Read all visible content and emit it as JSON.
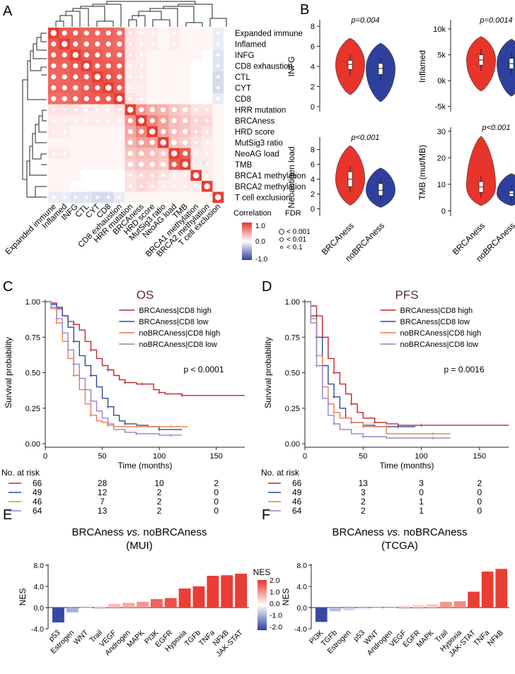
{
  "panel_labels": [
    "A",
    "B",
    "C",
    "D",
    "E",
    "F"
  ],
  "panel_a": {
    "row_labels": [
      "Expanded immune",
      "Inflamed",
      "INFG",
      "CD8 exhaustion",
      "CTL",
      "CYT",
      "CD8",
      "HRR mutation",
      "BRCAness",
      "HRD score",
      "MutSig3 ratio",
      "NeoAG load",
      "TMB",
      "BRCA1 methylation",
      "BRCA2 methylation",
      "T cell exclusion"
    ],
    "col_labels": [
      "Expanded immune",
      "Inflamed",
      "INFG",
      "CTL",
      "CYT",
      "CD8",
      "CD8 exhaustion",
      "HRR mutation",
      "BRCAness",
      "HRD score",
      "MutSig3 ratio",
      "NeoAG load",
      "TMB",
      "BRCA1 methylation",
      "BRCA2 methylation",
      "T cell exclusion"
    ],
    "legend": {
      "correlation_title": "Correlation",
      "fdr_title": "FDR",
      "ticks": [
        "1.0",
        "0.0",
        "-1.0"
      ],
      "fdr_levels": [
        "< 0.001",
        "< 0.01",
        "< 0.1"
      ],
      "colors": {
        "pos": "#e8342a",
        "mid": "#ffffff",
        "neg": "#2f3f9e"
      }
    }
  },
  "chart_data": [
    {
      "id": "heatmap",
      "type": "heatmap",
      "title": "",
      "note": "Approximate correlation values read from colour intensity (rows and columns in the same order as panel_a.row_labels).",
      "matrix": [
        [
          1,
          0.85,
          0.85,
          0.8,
          0.8,
          0.8,
          0.75,
          0.15,
          0.1,
          0.1,
          0.05,
          0.1,
          0.05,
          0.05,
          0.05,
          -0.1
        ],
        [
          0.85,
          1,
          0.85,
          0.8,
          0.8,
          0.8,
          0.75,
          0.15,
          0.1,
          0.1,
          0.05,
          0.1,
          0.05,
          0.05,
          0.05,
          -0.1
        ],
        [
          0.85,
          0.85,
          1,
          0.85,
          0.85,
          0.8,
          0.8,
          0.15,
          0.1,
          0.05,
          0.05,
          0.05,
          0.05,
          0.05,
          0,
          -0.15
        ],
        [
          0.8,
          0.8,
          0.85,
          1,
          0.85,
          0.85,
          0.85,
          0.1,
          0.1,
          0.05,
          0.05,
          0.05,
          0.05,
          0,
          0,
          -0.15
        ],
        [
          0.8,
          0.8,
          0.85,
          0.85,
          1,
          0.9,
          0.85,
          0.1,
          0.1,
          0.05,
          0.05,
          0.05,
          0.05,
          0,
          0,
          -0.2
        ],
        [
          0.8,
          0.8,
          0.8,
          0.85,
          0.9,
          1,
          0.85,
          0.1,
          0.1,
          0.05,
          0.05,
          0.05,
          0.05,
          0,
          0,
          -0.2
        ],
        [
          0.75,
          0.75,
          0.8,
          0.85,
          0.85,
          0.85,
          1,
          0.15,
          0.1,
          0.05,
          0.05,
          0.05,
          0.05,
          0,
          0,
          -0.1
        ],
        [
          0.15,
          0.15,
          0.15,
          0.1,
          0.1,
          0.1,
          0.15,
          1,
          0.55,
          0.45,
          0.4,
          0.3,
          0.25,
          0.15,
          0.15,
          0.05
        ],
        [
          0.1,
          0.1,
          0.1,
          0.1,
          0.1,
          0.1,
          0.1,
          0.55,
          1,
          0.65,
          0.5,
          0.35,
          0.3,
          0.2,
          0.2,
          0.05
        ],
        [
          0.1,
          0.1,
          0.05,
          0.05,
          0.05,
          0.05,
          0.05,
          0.45,
          0.65,
          1,
          0.5,
          0.35,
          0.3,
          0.2,
          0.15,
          0.05
        ],
        [
          0.05,
          0.05,
          0.05,
          0.05,
          0.05,
          0.05,
          0.05,
          0.4,
          0.5,
          0.5,
          1,
          0.3,
          0.25,
          0.15,
          0.1,
          0.05
        ],
        [
          0.1,
          0.1,
          0.05,
          0.05,
          0.05,
          0.05,
          0.05,
          0.3,
          0.35,
          0.35,
          0.3,
          1,
          0.85,
          0.1,
          0.1,
          0.05
        ],
        [
          0.05,
          0.05,
          0.05,
          0.05,
          0.05,
          0.05,
          0.05,
          0.25,
          0.3,
          0.3,
          0.25,
          0.85,
          1,
          0.1,
          0.1,
          0.05
        ],
        [
          0.05,
          0.05,
          0.05,
          0,
          0,
          0,
          0,
          0.15,
          0.2,
          0.2,
          0.15,
          0.1,
          0.1,
          1,
          0.1,
          0.05
        ],
        [
          0.05,
          0.05,
          0,
          0,
          0,
          0,
          0,
          0.15,
          0.2,
          0.15,
          0.1,
          0.1,
          0.1,
          0.1,
          1,
          0.05
        ],
        [
          -0.1,
          -0.1,
          -0.15,
          -0.15,
          -0.2,
          -0.2,
          -0.1,
          0.05,
          0.05,
          0.05,
          0.05,
          0.05,
          0.05,
          0.05,
          0.05,
          1
        ]
      ]
    },
    {
      "id": "violin-infg",
      "type": "violin",
      "ylabel": "INFG",
      "pvalue": "p=0.004",
      "ylim": [
        -0.5,
        8.5
      ],
      "yticks": [
        0,
        2,
        4,
        6,
        8
      ],
      "groups": [
        {
          "name": "BRCAness",
          "color": "#e8342a",
          "median": 4.2,
          "q1": 3.7,
          "q3": 4.6,
          "min": 1.2,
          "max": 6.8
        },
        {
          "name": "noBRCAness",
          "color": "#2f3f9e",
          "median": 3.8,
          "q1": 3.2,
          "q3": 4.3,
          "min": 0.5,
          "max": 6.3
        }
      ]
    },
    {
      "id": "violin-inflamed",
      "type": "violin",
      "ylabel": "Inflamed",
      "pvalue": "p=0.0014",
      "ylim": [
        -6000,
        11500
      ],
      "yticks": [
        -5000,
        0,
        5000,
        10000
      ],
      "ytick_labels": [
        "-5k",
        "0k",
        "5k",
        "10k"
      ],
      "groups": [
        {
          "name": "BRCAness",
          "color": "#e8342a",
          "median": 4000,
          "q1": 3000,
          "q3": 5000,
          "min": -2000,
          "max": 8500
        },
        {
          "name": "noBRCAness",
          "color": "#2f3f9e",
          "median": 3300,
          "q1": 2300,
          "q3": 4300,
          "min": -3000,
          "max": 8000
        }
      ]
    },
    {
      "id": "violin-neoag",
      "type": "violin",
      "ylabel": "Neoantigen load",
      "pvalue": "p<0.001",
      "ylim": [
        -1,
        9.5
      ],
      "yticks": [
        0,
        2,
        4,
        6,
        8
      ],
      "groups": [
        {
          "name": "BRCAness",
          "color": "#e8342a",
          "median": 4.0,
          "q1": 3.0,
          "q3": 5.0,
          "min": 0.5,
          "max": 8.5
        },
        {
          "name": "noBRCAness",
          "color": "#2f3f9e",
          "median": 2.5,
          "q1": 1.8,
          "q3": 3.4,
          "min": 0.2,
          "max": 5.5
        }
      ]
    },
    {
      "id": "violin-tmb",
      "type": "violin",
      "ylabel": "TMB (mut/MB)",
      "pvalue": "p<0.001",
      "ylim": [
        -2,
        31
      ],
      "yticks": [
        0,
        10,
        20,
        30
      ],
      "groups": [
        {
          "name": "BRCAness",
          "color": "#e8342a",
          "median": 9,
          "q1": 7,
          "q3": 11,
          "min": 2,
          "max": 28
        },
        {
          "name": "noBRCAness",
          "color": "#2f3f9e",
          "median": 6.5,
          "q1": 5.5,
          "q3": 7.5,
          "min": 2,
          "max": 14
        }
      ]
    },
    {
      "id": "km-os",
      "type": "line",
      "title": "OS",
      "xlabel": "Time (months)",
      "ylabel": "Survival probability",
      "xlim": [
        0,
        175
      ],
      "ylim": [
        0,
        1
      ],
      "xticks": [
        0,
        50,
        100,
        150
      ],
      "yticks": [
        "0.00",
        "0.25",
        "0.50",
        "0.75",
        "1.00"
      ],
      "pvalue": "p < 0.0001",
      "series": [
        {
          "name": "BRCAness|CD8 high",
          "color": "#c0262d",
          "x": [
            0,
            5,
            10,
            15,
            20,
            25,
            30,
            35,
            40,
            45,
            50,
            55,
            60,
            65,
            70,
            75,
            80,
            85,
            90,
            95,
            100,
            105,
            110,
            120,
            175
          ],
          "y": [
            1,
            0.99,
            0.95,
            0.9,
            0.86,
            0.84,
            0.8,
            0.72,
            0.66,
            0.6,
            0.55,
            0.52,
            0.48,
            0.45,
            0.43,
            0.43,
            0.42,
            0.42,
            0.42,
            0.38,
            0.36,
            0.35,
            0.35,
            0.34,
            0.34
          ]
        },
        {
          "name": "BRCAness|CD8 low",
          "color": "#2e4a9a",
          "x": [
            0,
            5,
            10,
            15,
            20,
            25,
            30,
            35,
            40,
            45,
            50,
            55,
            60,
            65,
            70,
            80,
            90,
            100,
            110,
            120
          ],
          "y": [
            1,
            0.98,
            0.96,
            0.9,
            0.82,
            0.72,
            0.62,
            0.55,
            0.48,
            0.4,
            0.32,
            0.26,
            0.2,
            0.16,
            0.14,
            0.13,
            0.12,
            0.1,
            0.1,
            0.1
          ]
        },
        {
          "name": "noBRCAness|CD8 high",
          "color": "#f07a46",
          "x": [
            0,
            5,
            10,
            15,
            20,
            25,
            30,
            35,
            40,
            45,
            50,
            55,
            60,
            70,
            80,
            90,
            100,
            110,
            125
          ],
          "y": [
            1,
            0.95,
            0.85,
            0.72,
            0.6,
            0.48,
            0.38,
            0.28,
            0.2,
            0.16,
            0.15,
            0.13,
            0.12,
            0.12,
            0.12,
            0.12,
            0.12,
            0.12,
            0.12
          ]
        },
        {
          "name": "noBRCAness|CD8 low",
          "color": "#9583c6",
          "x": [
            0,
            5,
            10,
            15,
            20,
            25,
            30,
            35,
            40,
            45,
            50,
            55,
            60,
            70,
            80,
            90,
            100,
            110,
            120
          ],
          "y": [
            1,
            0.96,
            0.88,
            0.78,
            0.66,
            0.56,
            0.46,
            0.38,
            0.3,
            0.23,
            0.18,
            0.14,
            0.1,
            0.08,
            0.07,
            0.07,
            0.06,
            0.06,
            0.06
          ]
        }
      ],
      "risk_table": {
        "title": "No. at risk",
        "times": [
          0,
          50,
          100,
          150
        ],
        "rows": [
          [
            "66",
            "28",
            "10",
            "2"
          ],
          [
            "49",
            "12",
            "2",
            "0"
          ],
          [
            "46",
            "7",
            "2",
            "0"
          ],
          [
            "64",
            "13",
            "2",
            "0"
          ]
        ]
      }
    },
    {
      "id": "km-pfs",
      "type": "line",
      "title": "PFS",
      "xlabel": "Time (months)",
      "ylabel": "Survival probability",
      "xlim": [
        0,
        175
      ],
      "ylim": [
        0,
        1
      ],
      "xticks": [
        0,
        50,
        100,
        150
      ],
      "yticks": [
        "0.00",
        "0.25",
        "0.50",
        "0.75",
        "1.00"
      ],
      "pvalue": "p = 0.0016",
      "series": [
        {
          "name": "BRCAness|CD8 high",
          "color": "#c0262d",
          "x": [
            0,
            5,
            10,
            15,
            20,
            25,
            30,
            35,
            40,
            45,
            50,
            60,
            70,
            80,
            100,
            175
          ],
          "y": [
            1,
            0.97,
            0.9,
            0.75,
            0.6,
            0.5,
            0.42,
            0.35,
            0.28,
            0.22,
            0.18,
            0.15,
            0.14,
            0.13,
            0.13,
            0.13
          ]
        },
        {
          "name": "BRCAness|CD8 low",
          "color": "#2e4a9a",
          "x": [
            0,
            5,
            10,
            15,
            20,
            25,
            30,
            35,
            40,
            50,
            60,
            80,
            95
          ],
          "y": [
            1,
            0.9,
            0.75,
            0.55,
            0.42,
            0.33,
            0.25,
            0.18,
            0.15,
            0.13,
            0.12,
            0.12,
            0.12
          ]
        },
        {
          "name": "noBRCAness|CD8 high",
          "color": "#f07a46",
          "x": [
            0,
            5,
            10,
            15,
            20,
            25,
            30,
            40,
            50,
            70,
            90,
            110,
            125
          ],
          "y": [
            1,
            0.88,
            0.62,
            0.4,
            0.28,
            0.22,
            0.18,
            0.15,
            0.12,
            0.07,
            0.07,
            0.07,
            0.07
          ]
        },
        {
          "name": "noBRCAness|CD8 low",
          "color": "#9583c6",
          "x": [
            0,
            5,
            10,
            15,
            20,
            25,
            30,
            40,
            50,
            70,
            90,
            110,
            125
          ],
          "y": [
            1,
            0.85,
            0.55,
            0.32,
            0.2,
            0.14,
            0.1,
            0.07,
            0.05,
            0.04,
            0.04,
            0.04,
            0.04
          ]
        }
      ],
      "risk_table": {
        "title": "No. at risk",
        "times": [
          0,
          50,
          100,
          150
        ],
        "rows": [
          [
            "66",
            "13",
            "3",
            "2"
          ],
          [
            "49",
            "3",
            "0",
            "0"
          ],
          [
            "46",
            "2",
            "1",
            "0"
          ],
          [
            "64",
            "2",
            "1",
            "0"
          ]
        ]
      }
    },
    {
      "id": "bar-mui",
      "type": "bar",
      "title": "BRCAness vs. noBRCAness",
      "subtitle": "(MUI)",
      "ylabel": "NES",
      "ylim": [
        -4,
        8
      ],
      "yticks": [
        "8.0",
        "4.0",
        "0.0",
        "-4.0"
      ],
      "categories": [
        "p53",
        "Estrogen",
        "WNT",
        "Trail",
        "VEGF",
        "Androgen",
        "MAPK",
        "PI3K",
        "EGFR",
        "Hypoxia",
        "TGFb",
        "TNFa",
        "NFkB",
        "JAK-STAT"
      ],
      "values": [
        -2.8,
        -0.9,
        -0.1,
        0.3,
        0.7,
        0.9,
        1.1,
        1.6,
        1.8,
        3.6,
        4.0,
        6.0,
        6.1,
        6.4
      ]
    },
    {
      "id": "bar-tcga",
      "type": "bar",
      "title": "BRCAness vs. noBRCAness",
      "subtitle": "(TCGA)",
      "ylabel": "NES",
      "ylim": [
        -4,
        8
      ],
      "yticks": [
        "8.0",
        "4.0",
        "0.0",
        "-4.0"
      ],
      "categories": [
        "PI3K",
        "TGFb",
        "Estrogen",
        "p53",
        "WNT",
        "Androgen",
        "VEGF",
        "EGFR",
        "MAPK",
        "Trail",
        "Hypoxia",
        "JAK-STAT",
        "TNFa",
        "NFkB"
      ],
      "values": [
        -2.7,
        -0.7,
        -0.5,
        -0.3,
        -0.2,
        -0.1,
        0.4,
        0.5,
        0.6,
        1.1,
        1.2,
        3.0,
        6.8,
        7.3
      ]
    },
    {
      "id": "nes-legend",
      "type": "colorbar",
      "title": "NES",
      "ticks": [
        "2.0",
        "1.0",
        "0.0",
        "-1.0",
        "-2.0"
      ],
      "range": [
        -2,
        2
      ]
    }
  ]
}
